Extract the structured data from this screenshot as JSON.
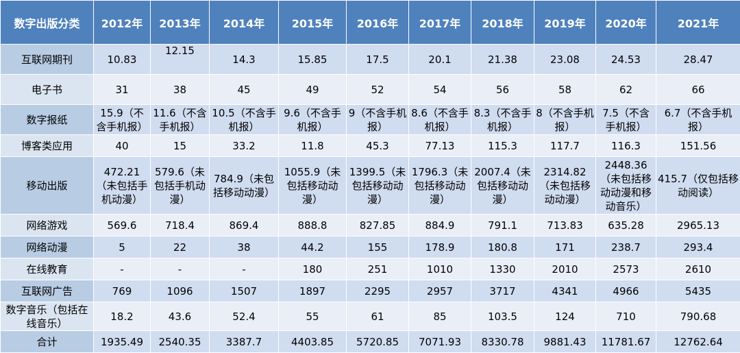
{
  "table": {
    "corner_label": "数字出版分类",
    "years": [
      "2012年",
      "2013年",
      "2014年",
      "2015年",
      "2016年",
      "2017年",
      "2018年",
      "2019年",
      "2020年",
      "2021年"
    ],
    "rows": [
      {
        "label": "互联网期刊",
        "cells": [
          "10.83",
          "12.15",
          "14.3",
          "15.85",
          "17.5",
          "20.1",
          "21.38",
          "23.08",
          "24.53",
          "28.47"
        ]
      },
      {
        "label": "电子书",
        "cells": [
          "31",
          "38",
          "45",
          "49",
          "52",
          "54",
          "56",
          "58",
          "62",
          "66"
        ]
      },
      {
        "label": "数字报纸",
        "cells": [
          "15.9（不含手机报）",
          "11.6（不含手机报）",
          "10.5（不含手机报）",
          "9.6（不含手机报）",
          "9（不含手机报）",
          "8.6（不含手机报）",
          "8.3（不含手机报）",
          "8（不含手机报）",
          "7.5（不含手机报）",
          "6.7（不含手机报）"
        ]
      },
      {
        "label": "博客类应用",
        "cells": [
          "40",
          "15",
          "33.2",
          "11.8",
          "45.3",
          "77.13",
          "115.3",
          "117.7",
          "116.3",
          "151.56"
        ]
      },
      {
        "label": "移动出版",
        "cells": [
          "472.21（未包括手机动漫）",
          "579.6（未包括手机动漫）",
          "784.9（未包括移动动漫）",
          "1055.9（未包括移动动漫）",
          "1399.5（未包括移动动漫）",
          "1796.3（未包括移动动漫）",
          "2007.4（未包括移动动漫）",
          "2314.82（未包括移动动漫）",
          "2448.36（未包括移动动漫和移动音乐）",
          "415.7（仅包括移动阅读）"
        ]
      },
      {
        "label": "网络游戏",
        "cells": [
          "569.6",
          "718.4",
          "869.4",
          "888.8",
          "827.85",
          "884.9",
          "791.1",
          "713.83",
          "635.28",
          "2965.13"
        ]
      },
      {
        "label": "网络动漫",
        "cells": [
          "5",
          "22",
          "38",
          "44.2",
          "155",
          "178.9",
          "180.8",
          "171",
          "238.7",
          "293.4"
        ]
      },
      {
        "label": "在线教育",
        "cells": [
          "-",
          "-",
          "-",
          "180",
          "251",
          "1010",
          "1330",
          "2010",
          "2573",
          "2610"
        ]
      },
      {
        "label": "互联网广告",
        "cells": [
          "769",
          "1096",
          "1507",
          "1897",
          "2295",
          "2957",
          "3717",
          "4341",
          "4966",
          "5435"
        ]
      },
      {
        "label": "数字音乐（包括在线音乐）",
        "cells": [
          "18.2",
          "43.6",
          "52.4",
          "55",
          "61",
          "85",
          "103.5",
          "124",
          "710",
          "790.68"
        ]
      },
      {
        "label": "合计",
        "cells": [
          "1935.49",
          "2540.35",
          "3387.7",
          "4403.85",
          "5720.85",
          "7071.93",
          "8330.78",
          "9881.43",
          "11781.67",
          "12762.64"
        ]
      }
    ]
  }
}
